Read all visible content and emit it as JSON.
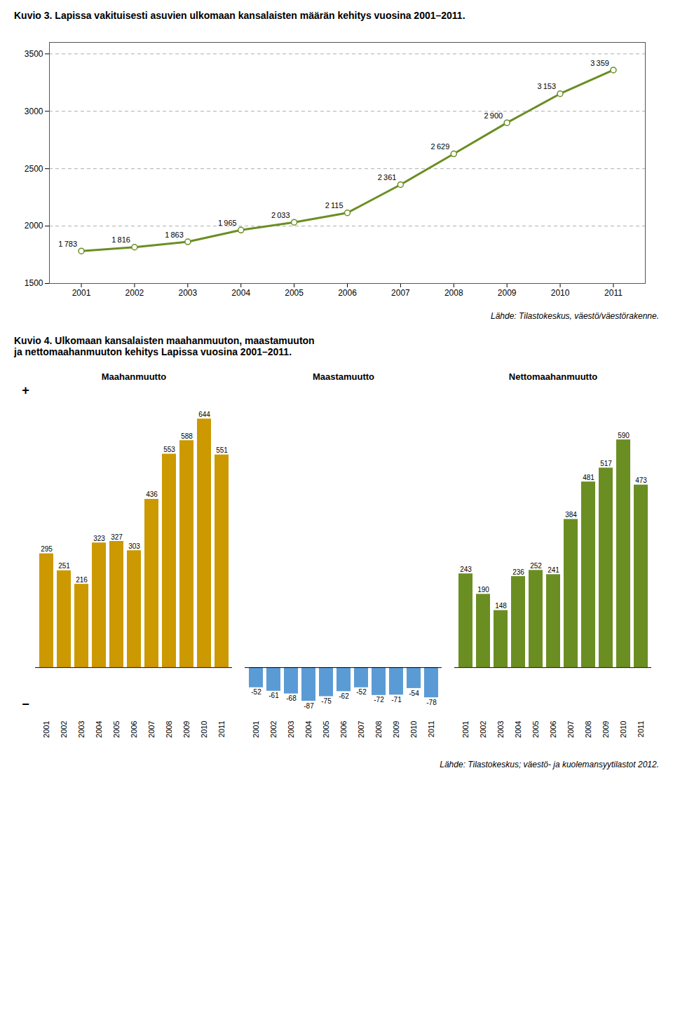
{
  "chart_data": [
    {
      "type": "line",
      "title": "Kuvio 3. Lapissa vakituisesti asuvien ulkomaan kansalaisten määrän kehitys vuosina 2001–2011.",
      "x": [
        2001,
        2002,
        2003,
        2004,
        2005,
        2006,
        2007,
        2008,
        2009,
        2010,
        2011
      ],
      "values": [
        1783,
        1816,
        1863,
        1965,
        2033,
        2115,
        2361,
        2629,
        2900,
        3153,
        3359
      ],
      "value_labels": [
        "1 783",
        "1 816",
        "1 863",
        "1 965",
        "2 033",
        "2 115",
        "2 361",
        "2 629",
        "2 900",
        "3 153",
        "3 359"
      ],
      "data_labels": true,
      "color": "#6b8e23",
      "marker": "circle",
      "xlim": [
        2000.4,
        2011.6
      ],
      "xticks": [
        2001,
        2002,
        2003,
        2004,
        2005,
        2006,
        2007,
        2008,
        2009,
        2010,
        2011
      ],
      "ylim": [
        1500,
        3600
      ],
      "yticks": [
        1500,
        2000,
        2500,
        3000,
        3500
      ],
      "grid": true,
      "caption": "Lähde: Tilastokeskus, väestö/väestörakenne."
    },
    {
      "type": "bar",
      "title": "Kuvio 4. Ulkomaan kansalaisten maahanmuuton, maastamuuton\nja nettomaahanmuuton kehitys Lapissa vuosina 2001–2011.",
      "categories": [
        2001,
        2002,
        2003,
        2004,
        2005,
        2006,
        2007,
        2008,
        2009,
        2010,
        2011
      ],
      "series": [
        {
          "name": "Maahanmuutto",
          "color": "#cc9900",
          "values": [
            295,
            251,
            216,
            323,
            327,
            303,
            436,
            553,
            588,
            644,
            551
          ]
        },
        {
          "name": "Maastamuutto",
          "color": "#5b9bd5",
          "values": [
            -52,
            -61,
            -68,
            -87,
            -75,
            -62,
            -52,
            -72,
            -71,
            -54,
            -78
          ]
        },
        {
          "name": "Nettomaahanmuutto",
          "color": "#6b8e23",
          "values": [
            243,
            190,
            148,
            236,
            252,
            241,
            384,
            481,
            517,
            590,
            473
          ]
        }
      ],
      "data_labels": true,
      "ylim": [
        -105,
        730
      ],
      "tick_labels": "x",
      "annotations": [
        "+",
        "−"
      ],
      "caption": "Lähde: Tilastokeskus; väestö- ja kuolemansyytilastot 2012."
    }
  ]
}
